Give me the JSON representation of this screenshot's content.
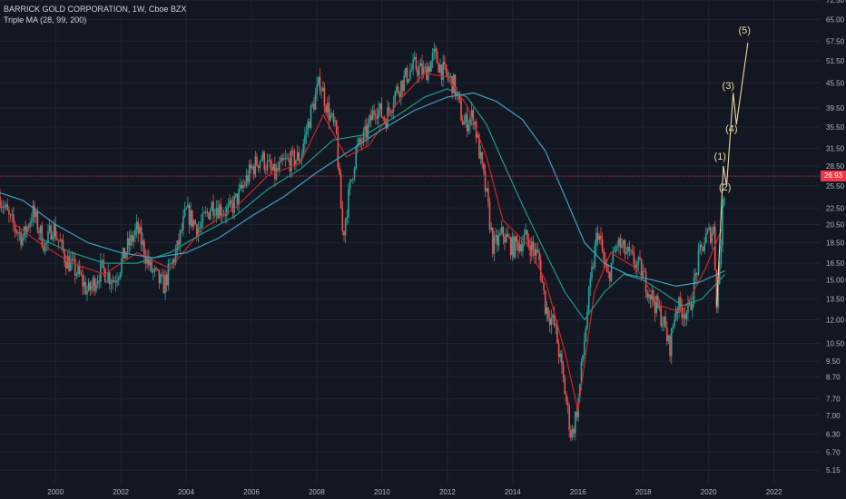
{
  "legend": {
    "symbol": "BARRICK GOLD CORPORATION, 1W, Cboe BZX",
    "indicator": "Triple MA (28, 99, 200)"
  },
  "current_price": "26.93",
  "colors": {
    "background": "#131722",
    "grid": "#1f2433",
    "axis_text": "#b2b5be",
    "up": "#26a69a",
    "down": "#ef5350",
    "ma_fast": "#c62828",
    "ma_mid": "#1e9a8a",
    "ma_slow": "#3fa0c0",
    "wave": "#e8d9a8",
    "price_line": "#f23645"
  },
  "chart_data": {
    "type": "candlestick",
    "x_axis": {
      "type": "date",
      "range": [
        1998.3,
        2023.4
      ],
      "ticks": [
        "2000",
        "2002",
        "2004",
        "2006",
        "2008",
        "2010",
        "2012",
        "2014",
        "2016",
        "2018",
        "2020",
        "2022"
      ]
    },
    "y_axis": {
      "scale": "log",
      "position": "right",
      "range": [
        4.8,
        72.5
      ],
      "ticks": [
        "72.50",
        "65.00",
        "57.50",
        "51.50",
        "45.50",
        "39.50",
        "35.50",
        "31.50",
        "28.50",
        "25.50",
        "22.50",
        "20.50",
        "18.50",
        "16.50",
        "15.00",
        "13.50",
        "12.00",
        "10.50",
        "9.50",
        "8.70",
        "7.70",
        "7.00",
        "6.30",
        "5.70",
        "5.15"
      ]
    },
    "grid": true,
    "price_path": [
      [
        1998.3,
        24
      ],
      [
        1998.6,
        21
      ],
      [
        1999.0,
        19
      ],
      [
        1999.3,
        22
      ],
      [
        1999.7,
        18
      ],
      [
        1999.9,
        20.5
      ],
      [
        2000.3,
        17
      ],
      [
        2000.7,
        15.5
      ],
      [
        2001.0,
        14
      ],
      [
        2001.4,
        16
      ],
      [
        2001.8,
        15
      ],
      [
        2002.2,
        18
      ],
      [
        2002.5,
        20
      ],
      [
        2002.9,
        16
      ],
      [
        2003.3,
        14.5
      ],
      [
        2003.7,
        17.5
      ],
      [
        2004.0,
        22
      ],
      [
        2004.4,
        20
      ],
      [
        2004.8,
        23
      ],
      [
        2005.3,
        22
      ],
      [
        2005.6,
        24
      ],
      [
        2006.0,
        28
      ],
      [
        2006.3,
        30
      ],
      [
        2006.7,
        27
      ],
      [
        2007.0,
        29
      ],
      [
        2007.5,
        30
      ],
      [
        2007.8,
        38
      ],
      [
        2008.1,
        46
      ],
      [
        2008.3,
        40
      ],
      [
        2008.6,
        34
      ],
      [
        2008.8,
        19
      ],
      [
        2008.9,
        22
      ],
      [
        2009.2,
        31
      ],
      [
        2009.5,
        34
      ],
      [
        2009.8,
        40
      ],
      [
        2010.1,
        37
      ],
      [
        2010.4,
        43
      ],
      [
        2010.8,
        48
      ],
      [
        2011.0,
        50
      ],
      [
        2011.3,
        48
      ],
      [
        2011.6,
        53
      ],
      [
        2011.9,
        48
      ],
      [
        2012.2,
        45
      ],
      [
        2012.5,
        36
      ],
      [
        2012.8,
        38
      ],
      [
        2013.0,
        30
      ],
      [
        2013.2,
        24
      ],
      [
        2013.4,
        18
      ],
      [
        2013.7,
        19.5
      ],
      [
        2014.0,
        18
      ],
      [
        2014.4,
        19
      ],
      [
        2014.8,
        17
      ],
      [
        2015.0,
        13
      ],
      [
        2015.3,
        11.5
      ],
      [
        2015.6,
        8
      ],
      [
        2015.8,
        6.2
      ],
      [
        2016.0,
        7.5
      ],
      [
        2016.3,
        13
      ],
      [
        2016.6,
        20
      ],
      [
        2016.9,
        15
      ],
      [
        2017.2,
        18.5
      ],
      [
        2017.6,
        17
      ],
      [
        2017.9,
        16
      ],
      [
        2018.2,
        14
      ],
      [
        2018.6,
        12
      ],
      [
        2018.8,
        10.2
      ],
      [
        2019.0,
        13
      ],
      [
        2019.4,
        12.5
      ],
      [
        2019.7,
        17
      ],
      [
        2019.9,
        19
      ],
      [
        2020.15,
        20
      ],
      [
        2020.25,
        13
      ],
      [
        2020.5,
        26.93
      ]
    ],
    "series": [
      {
        "name": "MA 28",
        "values": [
          [
            1998.6,
            21
          ],
          [
            1999.5,
            18.5
          ],
          [
            2000.5,
            16.5
          ],
          [
            2001.5,
            15.5
          ],
          [
            2002.5,
            17.5
          ],
          [
            2003.5,
            16
          ],
          [
            2004.5,
            20
          ],
          [
            2005.5,
            22.5
          ],
          [
            2006.5,
            27
          ],
          [
            2007.5,
            29
          ],
          [
            2008.2,
            38
          ],
          [
            2008.9,
            30
          ],
          [
            2009.6,
            32
          ],
          [
            2010.5,
            41
          ],
          [
            2011.3,
            48
          ],
          [
            2012.0,
            47
          ],
          [
            2012.6,
            40
          ],
          [
            2013.2,
            30
          ],
          [
            2013.7,
            21
          ],
          [
            2014.4,
            18.5
          ],
          [
            2015.0,
            15
          ],
          [
            2015.6,
            10
          ],
          [
            2016.0,
            7.2
          ],
          [
            2016.5,
            14
          ],
          [
            2017.0,
            17.5
          ],
          [
            2017.8,
            16
          ],
          [
            2018.5,
            13
          ],
          [
            2019.2,
            12.5
          ],
          [
            2019.9,
            16
          ],
          [
            2020.4,
            20
          ]
        ]
      },
      {
        "name": "MA 99",
        "values": [
          [
            1999.5,
            19
          ],
          [
            2000.5,
            17.5
          ],
          [
            2001.5,
            16.5
          ],
          [
            2002.5,
            16.5
          ],
          [
            2003.5,
            17.5
          ],
          [
            2004.5,
            19.5
          ],
          [
            2005.5,
            21.5
          ],
          [
            2006.5,
            25
          ],
          [
            2007.5,
            28
          ],
          [
            2008.5,
            33
          ],
          [
            2009.5,
            34
          ],
          [
            2010.5,
            38
          ],
          [
            2011.3,
            42
          ],
          [
            2012.0,
            44
          ],
          [
            2012.6,
            42
          ],
          [
            2013.2,
            36
          ],
          [
            2013.8,
            28
          ],
          [
            2014.4,
            22
          ],
          [
            2015.0,
            17.5
          ],
          [
            2015.6,
            14
          ],
          [
            2016.2,
            12
          ],
          [
            2016.8,
            14
          ],
          [
            2017.4,
            15.5
          ],
          [
            2018.0,
            15
          ],
          [
            2018.6,
            14
          ],
          [
            2019.2,
            13
          ],
          [
            2019.8,
            13.5
          ],
          [
            2020.5,
            15.5
          ]
        ]
      },
      {
        "name": "MA 200",
        "values": [
          [
            1998.3,
            24.5
          ],
          [
            1999.0,
            23.5
          ],
          [
            2000.0,
            20.5
          ],
          [
            2001.0,
            18.5
          ],
          [
            2002.0,
            17.5
          ],
          [
            2003.0,
            17
          ],
          [
            2004.0,
            17.5
          ],
          [
            2005.0,
            19
          ],
          [
            2006.0,
            21.5
          ],
          [
            2007.0,
            24
          ],
          [
            2008.0,
            27.5
          ],
          [
            2009.0,
            31
          ],
          [
            2010.0,
            35
          ],
          [
            2011.0,
            39
          ],
          [
            2012.0,
            42
          ],
          [
            2012.8,
            43
          ],
          [
            2013.5,
            41
          ],
          [
            2014.3,
            37
          ],
          [
            2015.0,
            31
          ],
          [
            2015.6,
            24
          ],
          [
            2016.2,
            18.5
          ],
          [
            2016.8,
            16.5
          ],
          [
            2017.5,
            15.5
          ],
          [
            2018.3,
            15
          ],
          [
            2019.0,
            14.5
          ],
          [
            2019.7,
            14.8
          ],
          [
            2020.5,
            15.8
          ]
        ]
      }
    ],
    "wave_projection": {
      "path": [
        [
          2020.25,
          13
        ],
        [
          2020.45,
          28.5
        ],
        [
          2020.55,
          25.5
        ],
        [
          2020.75,
          43
        ],
        [
          2020.85,
          36
        ],
        [
          2021.2,
          57
        ]
      ],
      "labels": [
        {
          "text": "(1)",
          "x": 2020.35,
          "y": 29.5
        },
        {
          "text": "(2)",
          "x": 2020.5,
          "y": 24.8
        },
        {
          "text": "(3)",
          "x": 2020.6,
          "y": 44
        },
        {
          "text": "(4)",
          "x": 2020.7,
          "y": 34.5
        },
        {
          "text": "(5)",
          "x": 2021.1,
          "y": 60
        }
      ]
    },
    "last_price": 26.93
  }
}
